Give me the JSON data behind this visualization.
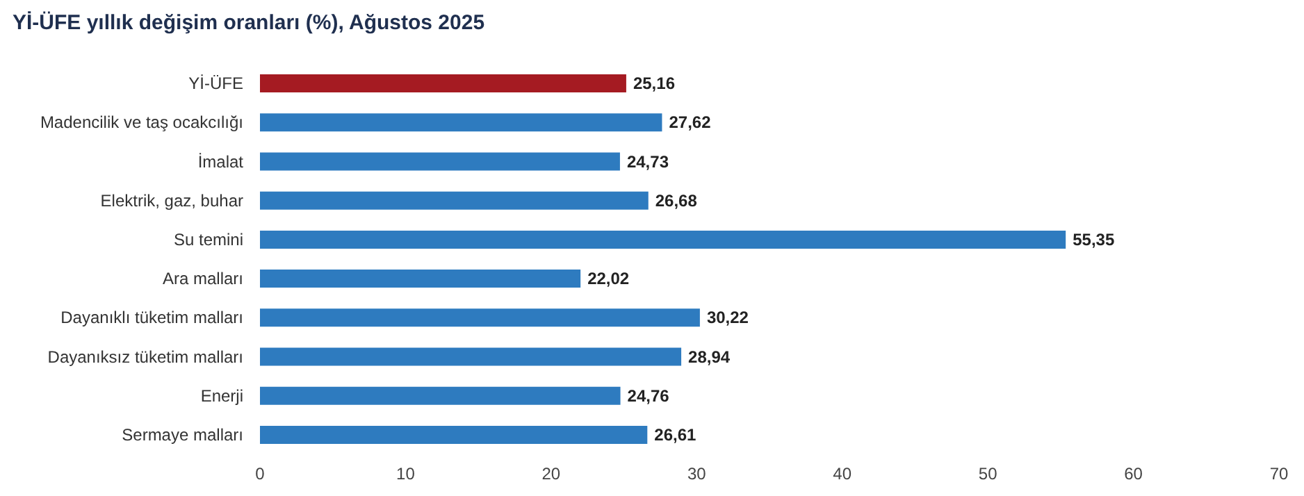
{
  "chart_data": {
    "type": "bar",
    "orientation": "horizontal",
    "title": "Yİ-ÜFE yıllık değişim oranları (%), Ağustos 2025",
    "categories": [
      "Yİ-ÜFE",
      "Madencilik ve taş ocakcılığı",
      "İmalat",
      "Elektrik, gaz, buhar",
      "Su temini",
      "Ara malları",
      "Dayanıklı tüketim malları",
      "Dayanıksız tüketim malları",
      "Enerji",
      "Sermaye malları"
    ],
    "values": [
      25.16,
      27.62,
      24.73,
      26.68,
      55.35,
      22.02,
      30.22,
      28.94,
      24.76,
      26.61
    ],
    "colors": [
      "#a51b22",
      "#2e7bbf",
      "#2e7bbf",
      "#2e7bbf",
      "#2e7bbf",
      "#2e7bbf",
      "#2e7bbf",
      "#2e7bbf",
      "#2e7bbf",
      "#2e7bbf"
    ],
    "value_labels": [
      "25,16",
      "27,62",
      "24,73",
      "26,68",
      "55,35",
      "22,02",
      "30,22",
      "28,94",
      "24,76",
      "26,61"
    ],
    "xlim": [
      0,
      70
    ],
    "xticks": [
      0,
      10,
      20,
      30,
      40,
      50,
      60,
      70
    ],
    "grid": false
  }
}
